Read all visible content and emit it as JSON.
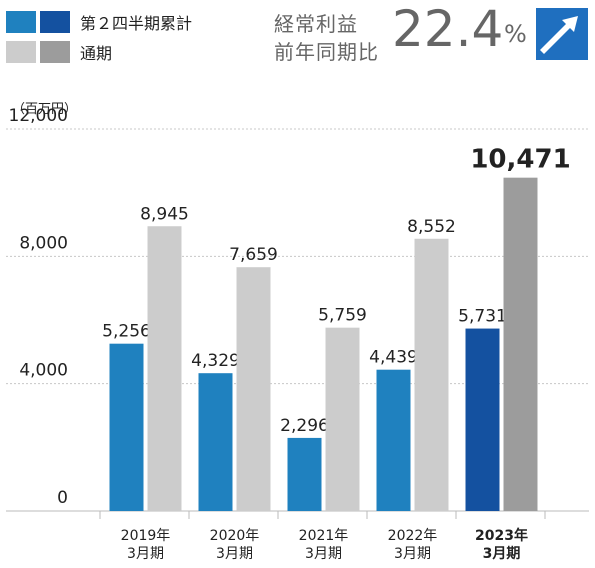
{
  "legend": {
    "quarter_label": "第２四半期累計",
    "full_label": "通期",
    "quarter_colors": [
      "#1f81bf",
      "#1451a0"
    ],
    "full_colors": [
      "#cccccc",
      "#9c9c9c"
    ]
  },
  "metric": {
    "label_line1": "経常利益",
    "label_line2": "前年同期比",
    "value": "22.4",
    "unit": "%",
    "icon": "arrow-up-right-icon",
    "icon_color": "#1f6fbf"
  },
  "chart_data": {
    "type": "bar",
    "unit_label": "（百万円）",
    "ylim": [
      0,
      12000
    ],
    "yticks": [
      0,
      4000,
      8000,
      12000
    ],
    "ytick_labels": [
      "0",
      "4,000",
      "8,000",
      "12,000"
    ],
    "grid": true,
    "categories": [
      [
        "2019年",
        "3月期"
      ],
      [
        "2020年",
        "3月期"
      ],
      [
        "2021年",
        "3月期"
      ],
      [
        "2022年",
        "3月期"
      ],
      [
        "2023年",
        "3月期"
      ]
    ],
    "highlight_index": 4,
    "series": [
      {
        "name": "第２四半期累計",
        "values": [
          5256,
          4329,
          2296,
          4439,
          5731
        ],
        "labels": [
          "5,256",
          "4,329",
          "2,296",
          "4,439",
          "5,731"
        ],
        "color": "#1f81bf",
        "highlight_color": "#1451a0"
      },
      {
        "name": "通期",
        "values": [
          8945,
          7659,
          5759,
          8552,
          10471
        ],
        "labels": [
          "8,945",
          "7,659",
          "5,759",
          "8,552",
          "10,471"
        ],
        "color": "#cccccc",
        "highlight_color": "#9c9c9c"
      }
    ]
  }
}
